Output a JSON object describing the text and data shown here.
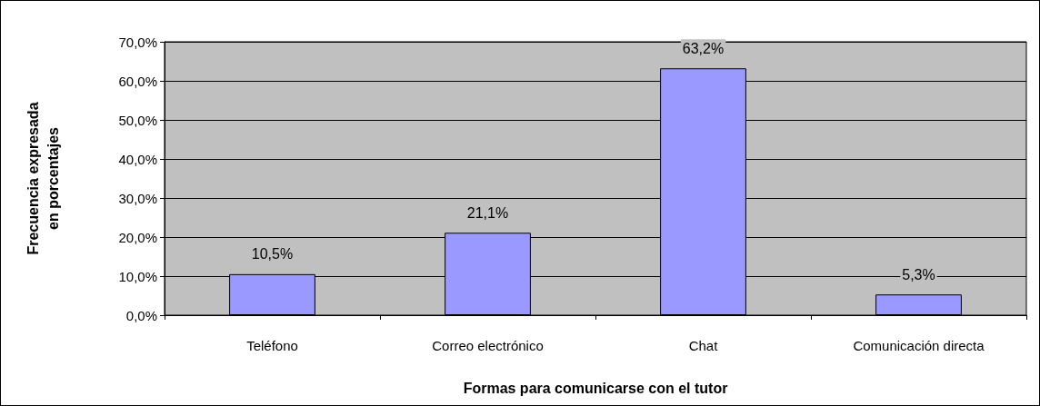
{
  "chart_data": {
    "type": "bar",
    "xlabel": "Formas para comunicarse con el tutor",
    "ylabel": "Frecuencia expresada en porcentajes",
    "categories": [
      "Teléfono",
      "Correo electrónico",
      "Chat",
      "Comunicación directa"
    ],
    "values": [
      10.5,
      21.1,
      63.2,
      5.3
    ],
    "color": "#9999ff",
    "value_labels": [
      "10,5%",
      "21,1%",
      "63,2%",
      "5,3%"
    ],
    "ylim": [
      0,
      70
    ],
    "yticks": [
      {
        "value": 0,
        "label": "0,0%"
      },
      {
        "value": 10,
        "label": "10,0%"
      },
      {
        "value": 20,
        "label": "20,0%"
      },
      {
        "value": 30,
        "label": "30,0%"
      },
      {
        "value": 40,
        "label": "40,0%"
      },
      {
        "value": 50,
        "label": "50,0%"
      },
      {
        "value": 60,
        "label": "60,0%"
      },
      {
        "value": 70,
        "label": "70,0%"
      }
    ],
    "grid": "y"
  }
}
